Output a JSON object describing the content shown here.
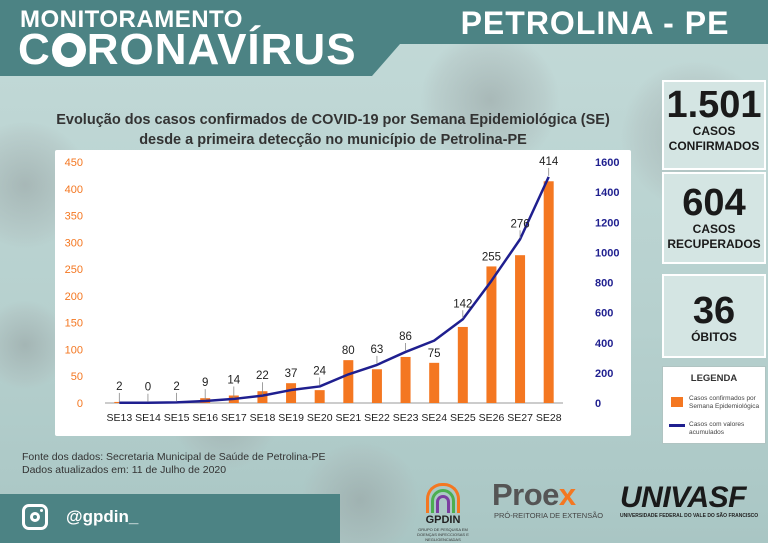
{
  "header": {
    "brand_top": "MONITORAMENTO",
    "brand_c": "C",
    "brand_rest": "RONAVÍRUS",
    "city": "PETROLINA - PE"
  },
  "chart_title_line1": "Evolução dos casos confirmados de COVID-19 por Semana Epidemiológica (SE)",
  "chart_title_line2": "desde a primeira detecção no município de Petrolina-PE",
  "stats": {
    "confirmed_value": "1.501",
    "confirmed_label_1": "CASOS",
    "confirmed_label_2": "CONFIRMADOS",
    "recovered_value": "604",
    "recovered_label_1": "CASOS",
    "recovered_label_2": "RECUPERADOS",
    "deaths_value": "36",
    "deaths_label": "ÓBITOS"
  },
  "legend": {
    "title": "LEGENDA",
    "bar_label": "Casos confirmados por Semana Epidemiológica",
    "line_label": "Casos com valores acumulados"
  },
  "source": {
    "line1": "Fonte dos dados: Secretaria Municipal de Saúde de Petrolina-PE",
    "line2": "Dados atualizados em: 11 de Julho de 2020"
  },
  "footer": {
    "handle": "@gpdin_",
    "gpdin": "GPDIN",
    "gpdin_sub": "GRUPO DE PESQUISA EM DOENÇAS INFECCIOSAS E NEGLIGENCIADAS",
    "proex_main": "Proe",
    "proex_x": "x",
    "proex_sub": "PRÓ-REITORIA DE EXTENSÃO",
    "univasf": "UNIVASF",
    "univasf_sub": "UNIVERSIDADE FEDERAL DO VALE DO SÃO FRANCISCO"
  },
  "colors": {
    "bar": "#f47721",
    "line": "#1f1f8f",
    "header": "#4c8384",
    "left_axis": "#f47721",
    "right_axis": "#1f1f8f"
  },
  "chart_data": {
    "type": "bar",
    "title": "Evolução dos casos confirmados de COVID-19 por Semana Epidemiológica (SE) desde a primeira detecção no município de Petrolina-PE",
    "categories": [
      "SE13",
      "SE14",
      "SE15",
      "SE16",
      "SE17",
      "SE18",
      "SE19",
      "SE20",
      "SE21",
      "SE22",
      "SE23",
      "SE24",
      "SE25",
      "SE26",
      "SE27",
      "SE28"
    ],
    "series": [
      {
        "name": "Casos confirmados por Semana Epidemiológica",
        "type": "bar",
        "axis": "left",
        "values": [
          2,
          0,
          2,
          9,
          14,
          22,
          37,
          24,
          80,
          63,
          86,
          75,
          142,
          255,
          276,
          414
        ]
      },
      {
        "name": "Casos com valores acumulados",
        "type": "line",
        "axis": "right",
        "values": [
          2,
          2,
          4,
          13,
          27,
          49,
          86,
          110,
          190,
          253,
          339,
          414,
          556,
          811,
          1087,
          1501
        ]
      }
    ],
    "ylim_left": [
      0,
      450
    ],
    "yticks_left": [
      0,
      50,
      100,
      150,
      200,
      250,
      300,
      350,
      400,
      450
    ],
    "ylim_right": [
      0,
      1600
    ],
    "yticks_right": [
      0,
      200,
      400,
      600,
      800,
      1000,
      1200,
      1400,
      1600
    ],
    "grid": false,
    "legend_position": "right"
  }
}
